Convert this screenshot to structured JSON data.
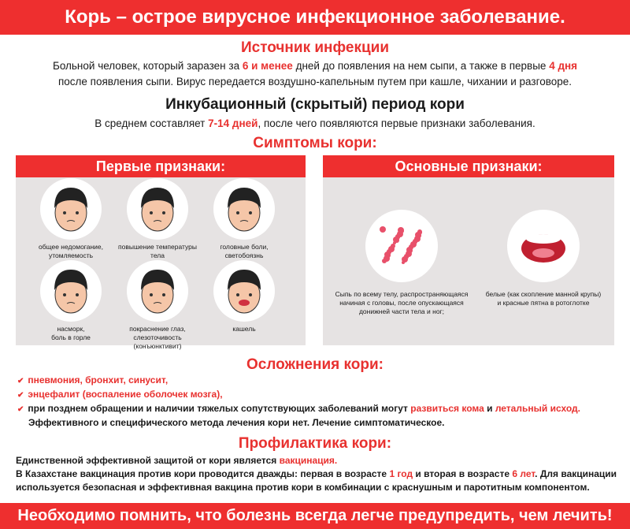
{
  "title": "Корь – острое вирусное инфекционное заболевание.",
  "source": {
    "heading": "Источник инфекции",
    "l1a": "Больной человек, который заразен за ",
    "l1b": "6 и менее",
    "l1c": " дней до появления на нем сыпи, а также в первые ",
    "l1d": "4 дня",
    "l2": "после появления сыпи. Вирус передается воздушно-капельным путем при кашле, чихании и разговоре."
  },
  "incubation": {
    "heading": "Инкубационный (скрытый) период кори",
    "a": "В среднем составляет ",
    "b": "7-14 дней",
    "c": ", после чего появляются первые признаки заболевания."
  },
  "symptoms_heading": "Симптомы кори:",
  "first": {
    "heading": "Первые признаки:",
    "items": [
      {
        "l1": "общее недомогание,",
        "l2": "утомляемость"
      },
      {
        "l1": "повышение температуры тела",
        "l2": ""
      },
      {
        "l1": "головные боли,",
        "l2": "светобоязнь"
      },
      {
        "l1": "насморк,",
        "l2": "боль в горле"
      },
      {
        "l1": "покраснение глаз,",
        "l2": "слезоточивость (конъюнктивит)"
      },
      {
        "l1": "кашель",
        "l2": ""
      }
    ]
  },
  "main": {
    "heading": "Основные признаки:",
    "items": [
      {
        "l1": "Сыпь по всему телу, распространяющаяся",
        "l2": "начиная с головы, после опускающаяся",
        "l3": "донижней части тела и ног;"
      },
      {
        "l1": "белые (как скопление манной крупы)",
        "l2": "и красные пятна в ротоглотке",
        "l3": ""
      }
    ]
  },
  "complications": {
    "heading": "Осложнения кори:",
    "i1": "пневмония, бронхит, синусит,",
    "i2": "энцефалит (воспаление оболочек мозга),",
    "i3a": "при позднем обращении и наличии тяжелых сопутствующих заболеваний могут ",
    "i3b": "развиться кома",
    "i3c": " и ",
    "i3d": "летальный исход.",
    "note": "Эффективного и специфического метода лечения кори нет. Лечение симптоматическое."
  },
  "prevention": {
    "heading": "Профилактика кори:",
    "l1a": "Единственной эффективной защитой от кори является ",
    "l1b": "вакцинация.",
    "l2a": "В Казахстане вакцинация против кори проводится дважды: первая в возрасте ",
    "l2b": "1 год",
    "l2c": " и вторая в возрасте ",
    "l2d": "6 лет",
    "l2e": ". Для вакцинации",
    "l3": "используется безопасная и эффективная вакцина против кори в комбинации с краснушным и паротитным компонентом."
  },
  "footer": "Необходимо помнить, что болезнь всегда легче предупредить, чем лечить!",
  "colors": {
    "accent": "#ee2f2f",
    "panel": "#e6e3e3"
  }
}
